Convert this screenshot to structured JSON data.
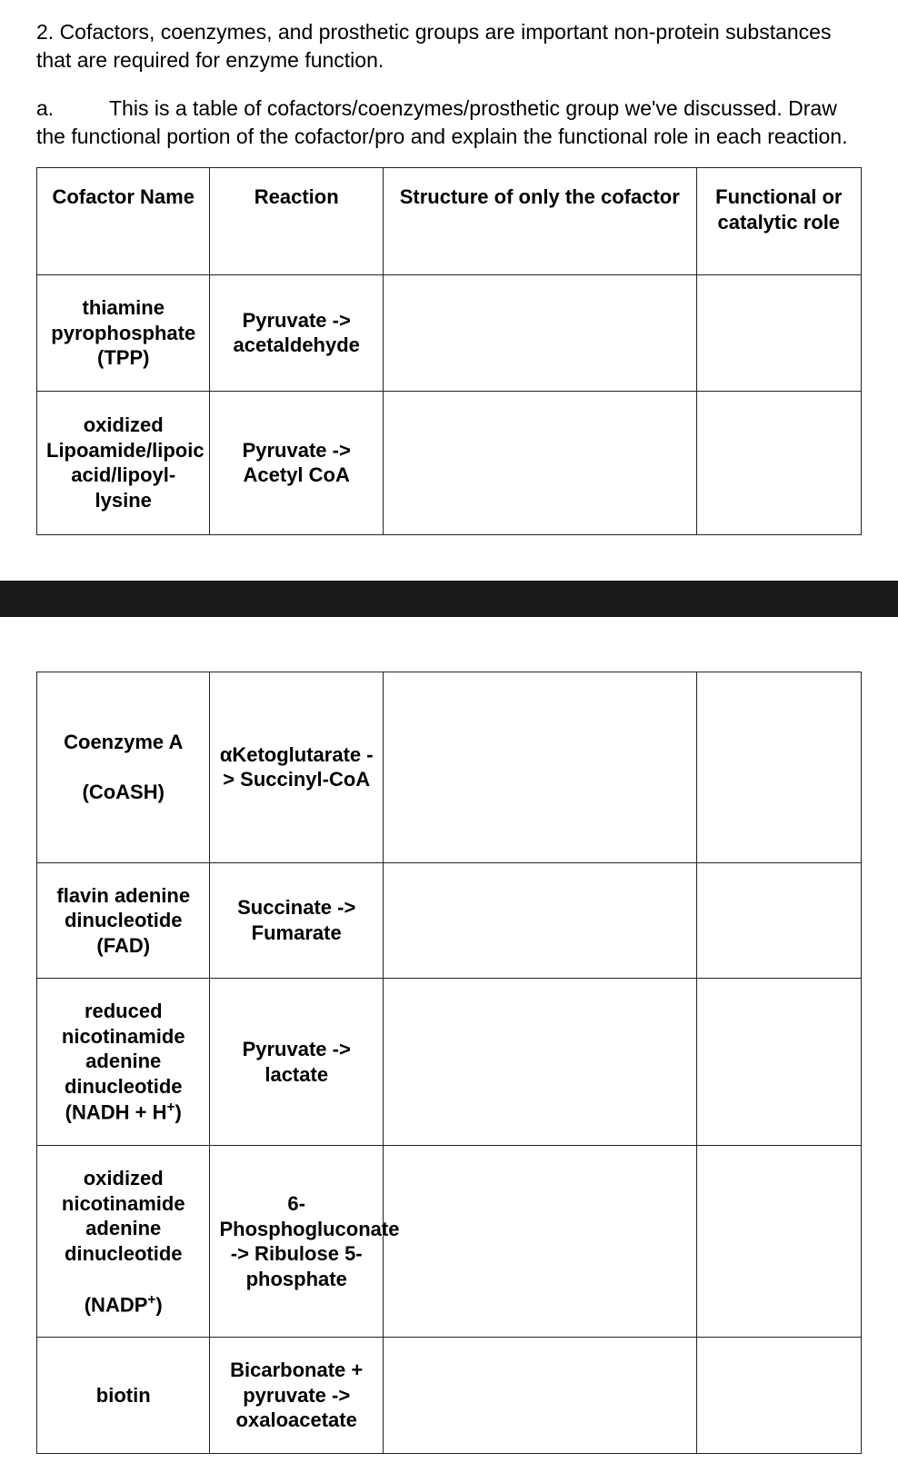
{
  "text": {
    "intro": "2. Cofactors, coenzymes, and prosthetic groups are important non-protein substances that are required for enzyme function.",
    "subLetter": "a.",
    "subBody": "This is a table of cofactors/coenzymes/prosthetic group we've discussed. Draw the functional portion of the cofactor/pro and explain the functional role in each reaction."
  },
  "table": {
    "headers": {
      "name": "Cofactor Name",
      "reaction": "Reaction",
      "structure": "Structure of only the cofactor",
      "role": "Functional or catalytic role"
    },
    "columnWidthsPercent": [
      21,
      21,
      38,
      20
    ],
    "rowsTop": [
      {
        "name": "thiamine pyrophosphate (TPP)",
        "reaction": "Pyruvate -> acetaldehyde",
        "structure": "",
        "role": "",
        "heightPx": 122
      },
      {
        "name": "oxidized Lipoamide/lipoic acid/lipoyl-lysine",
        "reaction": "Pyruvate -> Acetyl CoA",
        "structure": "",
        "role": "",
        "heightPx": 158
      }
    ],
    "rowsBottom": [
      {
        "nameHtml": "Coenzyme A<br><br>(CoASH)",
        "reactionHtml": "αKetoglutarate -> Succinyl-CoA",
        "structure": "",
        "role": "",
        "heightPx": 210
      },
      {
        "nameHtml": "flavin adenine dinucleotide (FAD)",
        "reactionHtml": "Succinate -> Fumarate",
        "structure": "",
        "role": "",
        "heightPx": 110
      },
      {
        "nameHtml": "reduced nicotinamide adenine dinucleotide (NADH + H<span class=\"sup\">+</span>)",
        "reactionHtml": "Pyruvate -> lactate",
        "structure": "",
        "role": "",
        "heightPx": 160
      },
      {
        "nameHtml": "oxidized nicotinamide adenine dinucleotide<br><br>(NADP<span class=\"sup\">+</span>)",
        "reactionHtml": "6-Phosphogluconate -> Ribulose 5-phosphate",
        "structure": "",
        "role": "",
        "heightPx": 172
      },
      {
        "nameHtml": "biotin",
        "reactionHtml": "Bicarbonate + pyruvate -> oxaloacetate",
        "structure": "",
        "role": "",
        "heightPx": 88
      }
    ]
  },
  "style": {
    "fontFamily": "Arial",
    "bodyFontSizePx": 23,
    "tableFontSizePx": 22,
    "borderColor": "#222222",
    "separatorColor": "#1a1a1a",
    "separatorHeightPx": 40,
    "backgroundColor": "#ffffff",
    "textColor": "#000000"
  }
}
